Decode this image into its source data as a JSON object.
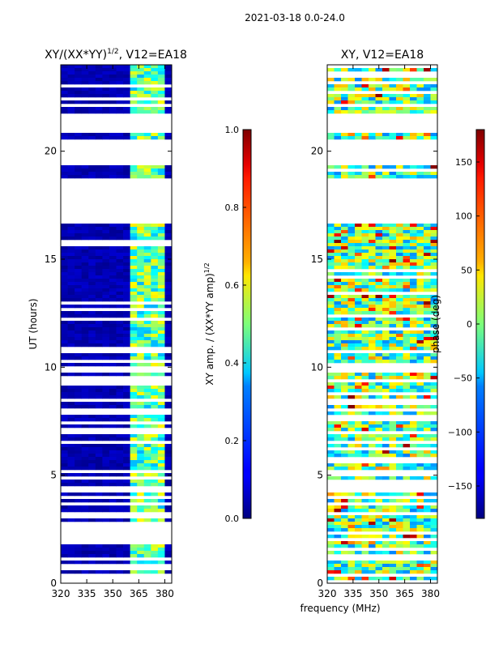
{
  "suptitle": "2021-03-18 0.0-24.0",
  "shared_xlabel": "frequency (MHz)",
  "chart_data": [
    {
      "type": "heatmap",
      "title": "XY/(XX*YY)",
      "title_sup": "1/2",
      "title_suffix": ", V12=EA18",
      "xlabel": "",
      "ylabel": "UT (hours)",
      "xlim": [
        320,
        384
      ],
      "ylim": [
        0,
        24
      ],
      "xticks": [
        320,
        335,
        350,
        365,
        380
      ],
      "yticks": [
        0,
        5,
        10,
        15,
        20
      ],
      "colorbar": {
        "label": "XY amp. / (XX*YY amp)",
        "label_sup": "1/2",
        "range": [
          0.0,
          1.0
        ],
        "ticks": [
          "0.0",
          "0.2",
          "0.4",
          "0.6",
          "0.8",
          "1.0"
        ],
        "colormap": "jet"
      },
      "flagged_gaps_hours": [
        [
          16.6,
          18.8
        ],
        [
          19.4,
          20.6
        ],
        [
          20.9,
          21.7
        ]
      ],
      "bright_band_mhz": [
        361,
        378
      ]
    },
    {
      "type": "heatmap",
      "title": "XY, V12=EA18",
      "xlabel": "",
      "ylabel": "",
      "xlim": [
        320,
        384
      ],
      "ylim": [
        0,
        24
      ],
      "xticks": [
        320,
        335,
        350,
        365,
        380
      ],
      "yticks": [
        0,
        5,
        10,
        15,
        20
      ],
      "colorbar": {
        "label": "phase (deg)",
        "range": [
          -180,
          180
        ],
        "ticks": [
          "−150",
          "−100",
          "−50",
          "0",
          "50",
          "100",
          "150"
        ],
        "colormap": "jet"
      },
      "flagged_gaps_hours": [
        [
          16.6,
          18.8
        ],
        [
          19.4,
          20.6
        ],
        [
          20.9,
          21.7
        ]
      ]
    }
  ]
}
